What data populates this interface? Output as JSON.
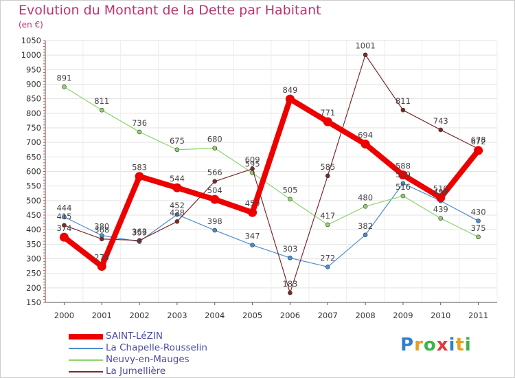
{
  "title": "Evolution du Montant de la Dette par Habitant",
  "unit": "(en €)",
  "logo": {
    "letters": [
      "P",
      "r",
      "o",
      "x",
      "i",
      "t",
      "i"
    ],
    "colors": [
      "#2f7fd0",
      "#e8a020",
      "#3ab54a",
      "#e03a3a",
      "#2f7fd0",
      "#e8a020",
      "#3ab54a"
    ]
  },
  "chart_data": {
    "type": "line",
    "x": [
      "2000",
      "2001",
      "2002",
      "2003",
      "2004",
      "2005",
      "2006",
      "2007",
      "2008",
      "2009",
      "2010",
      "2011"
    ],
    "yticks": [
      150,
      200,
      250,
      300,
      350,
      400,
      450,
      500,
      550,
      600,
      650,
      700,
      750,
      800,
      850,
      900,
      950,
      1000,
      1050
    ],
    "ylim": [
      150,
      1050
    ],
    "grid": true,
    "legend_position": "bottom-left",
    "series": [
      {
        "name": "SAINT-LéZIN",
        "color": "#ee0000",
        "values": [
          374,
          274,
          583,
          544,
          504,
          459,
          849,
          771,
          694,
          588,
          510,
          672
        ]
      },
      {
        "name": "La Chapelle-Rousselin",
        "color": "#4b8fcf",
        "values": [
          444,
          380,
          359,
          452,
          398,
          347,
          303,
          272,
          382,
          559,
          499,
          430
        ]
      },
      {
        "name": "Neuvy-en-Mauges",
        "color": "#8fd36a",
        "values": [
          891,
          811,
          736,
          675,
          680,
          595,
          505,
          417,
          480,
          516,
          439,
          375
        ]
      },
      {
        "name": "La Jumellière",
        "color": "#7a2a2a",
        "values": [
          415,
          368,
          363,
          428,
          566,
          609,
          183,
          585,
          1001,
          811,
          743,
          678
        ]
      }
    ]
  }
}
